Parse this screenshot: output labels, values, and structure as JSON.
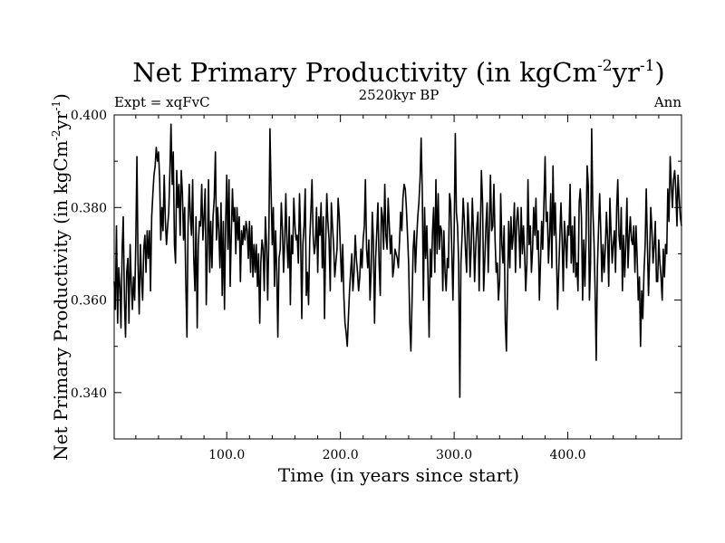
{
  "chart_data": {
    "type": "line",
    "title": "Net Primary Productivity (in kgCm",
    "title_sup1": "-2",
    "title_mid": "yr",
    "title_sup2": "-1",
    "title_end": ")",
    "subtitle": "2520kyr BP",
    "left_label": "Expt = xqFvC",
    "right_label": "Ann",
    "xlabel": "Time (in years since start)",
    "ylabel_main": "Net Primary Productivity (in kgCm",
    "ylabel_sup1": "-2",
    "ylabel_mid": "yr",
    "ylabel_sup2": "-1",
    "ylabel_end": ")",
    "xlim": [
      1,
      500
    ],
    "ylim": [
      0.33,
      0.4
    ],
    "x_ticks": [
      100,
      200,
      300,
      400
    ],
    "x_tick_labels": [
      "100.0",
      "200.0",
      "300.0",
      "400.0"
    ],
    "y_ticks": [
      0.34,
      0.36,
      0.38,
      0.4
    ],
    "y_tick_labels": [
      "0.340",
      "0.360",
      "0.380",
      "0.400"
    ],
    "grid": false,
    "line_color": "#000000",
    "series": [
      {
        "x_start": 1,
        "x_step": 1,
        "values": [
          0.364,
          0.358,
          0.376,
          0.355,
          0.367,
          0.363,
          0.354,
          0.371,
          0.378,
          0.36,
          0.352,
          0.366,
          0.369,
          0.355,
          0.372,
          0.364,
          0.358,
          0.365,
          0.36,
          0.372,
          0.391,
          0.368,
          0.357,
          0.372,
          0.365,
          0.36,
          0.371,
          0.374,
          0.366,
          0.375,
          0.369,
          0.375,
          0.362,
          0.378,
          0.383,
          0.387,
          0.389,
          0.393,
          0.39,
          0.392,
          0.386,
          0.373,
          0.38,
          0.375,
          0.387,
          0.377,
          0.372,
          0.376,
          0.379,
          0.388,
          0.398,
          0.385,
          0.392,
          0.372,
          0.368,
          0.388,
          0.38,
          0.385,
          0.374,
          0.388,
          0.383,
          0.373,
          0.38,
          0.364,
          0.352,
          0.376,
          0.385,
          0.378,
          0.374,
          0.386,
          0.369,
          0.362,
          0.378,
          0.354,
          0.372,
          0.377,
          0.376,
          0.385,
          0.373,
          0.378,
          0.384,
          0.359,
          0.372,
          0.386,
          0.366,
          0.377,
          0.367,
          0.378,
          0.382,
          0.392,
          0.373,
          0.38,
          0.375,
          0.367,
          0.381,
          0.361,
          0.377,
          0.358,
          0.376,
          0.387,
          0.371,
          0.386,
          0.363,
          0.374,
          0.384,
          0.377,
          0.38,
          0.37,
          0.38,
          0.373,
          0.378,
          0.364,
          0.375,
          0.372,
          0.376,
          0.373,
          0.377,
          0.375,
          0.369,
          0.377,
          0.366,
          0.376,
          0.365,
          0.372,
          0.366,
          0.372,
          0.363,
          0.37,
          0.355,
          0.368,
          0.373,
          0.371,
          0.362,
          0.378,
          0.372,
          0.36,
          0.373,
          0.397,
          0.384,
          0.372,
          0.38,
          0.363,
          0.375,
          0.366,
          0.352,
          0.369,
          0.371,
          0.381,
          0.375,
          0.366,
          0.373,
          0.383,
          0.372,
          0.367,
          0.378,
          0.359,
          0.374,
          0.37,
          0.382,
          0.376,
          0.373,
          0.374,
          0.368,
          0.383,
          0.374,
          0.356,
          0.372,
          0.376,
          0.384,
          0.361,
          0.366,
          0.359,
          0.373,
          0.379,
          0.386,
          0.374,
          0.37,
          0.372,
          0.38,
          0.366,
          0.378,
          0.374,
          0.381,
          0.367,
          0.378,
          0.356,
          0.372,
          0.383,
          0.377,
          0.373,
          0.362,
          0.381,
          0.376,
          0.372,
          0.365,
          0.368,
          0.371,
          0.382,
          0.378,
          0.371,
          0.364,
          0.372,
          0.361,
          0.355,
          0.353,
          0.35,
          0.356,
          0.362,
          0.366,
          0.37,
          0.362,
          0.366,
          0.374,
          0.369,
          0.366,
          0.362,
          0.365,
          0.371,
          0.367,
          0.373,
          0.376,
          0.386,
          0.371,
          0.367,
          0.373,
          0.36,
          0.366,
          0.379,
          0.373,
          0.355,
          0.369,
          0.375,
          0.381,
          0.368,
          0.361,
          0.38,
          0.378,
          0.371,
          0.385,
          0.374,
          0.371,
          0.382,
          0.376,
          0.37,
          0.374,
          0.365,
          0.367,
          0.371,
          0.37,
          0.369,
          0.367,
          0.373,
          0.379,
          0.375,
          0.382,
          0.385,
          0.384,
          0.38,
          0.374,
          0.368,
          0.355,
          0.349,
          0.36,
          0.371,
          0.375,
          0.366,
          0.373,
          0.378,
          0.381,
          0.386,
          0.395,
          0.383,
          0.36,
          0.38,
          0.369,
          0.376,
          0.366,
          0.352,
          0.371,
          0.365,
          0.375,
          0.38,
          0.366,
          0.386,
          0.37,
          0.383,
          0.371,
          0.376,
          0.375,
          0.362,
          0.375,
          0.366,
          0.362,
          0.369,
          0.367,
          0.383,
          0.381,
          0.37,
          0.36,
          0.374,
          0.396,
          0.379,
          0.376,
          0.368,
          0.339,
          0.368,
          0.374,
          0.382,
          0.377,
          0.371,
          0.366,
          0.381,
          0.376,
          0.365,
          0.371,
          0.382,
          0.375,
          0.364,
          0.371,
          0.376,
          0.379,
          0.362,
          0.374,
          0.388,
          0.381,
          0.362,
          0.369,
          0.376,
          0.381,
          0.366,
          0.376,
          0.387,
          0.375,
          0.376,
          0.385,
          0.373,
          0.366,
          0.368,
          0.36,
          0.364,
          0.383,
          0.372,
          0.368,
          0.376,
          0.355,
          0.349,
          0.364,
          0.377,
          0.367,
          0.378,
          0.371,
          0.374,
          0.381,
          0.366,
          0.377,
          0.38,
          0.375,
          0.367,
          0.38,
          0.37,
          0.376,
          0.37,
          0.362,
          0.368,
          0.386,
          0.372,
          0.376,
          0.366,
          0.371,
          0.38,
          0.374,
          0.382,
          0.371,
          0.375,
          0.36,
          0.368,
          0.377,
          0.371,
          0.381,
          0.391,
          0.377,
          0.379,
          0.368,
          0.374,
          0.383,
          0.367,
          0.389,
          0.374,
          0.381,
          0.37,
          0.358,
          0.366,
          0.374,
          0.381,
          0.373,
          0.362,
          0.377,
          0.373,
          0.367,
          0.376,
          0.374,
          0.385,
          0.368,
          0.376,
          0.366,
          0.378,
          0.365,
          0.368,
          0.362,
          0.381,
          0.384,
          0.378,
          0.36,
          0.373,
          0.363,
          0.373,
          0.389,
          0.385,
          0.36,
          0.368,
          0.397,
          0.38,
          0.373,
          0.362,
          0.347,
          0.367,
          0.375,
          0.383,
          0.375,
          0.364,
          0.372,
          0.366,
          0.371,
          0.379,
          0.373,
          0.363,
          0.382,
          0.375,
          0.368,
          0.372,
          0.375,
          0.366,
          0.38,
          0.386,
          0.374,
          0.371,
          0.38,
          0.362,
          0.374,
          0.365,
          0.372,
          0.382,
          0.367,
          0.374,
          0.378,
          0.373,
          0.372,
          0.376,
          0.366,
          0.376,
          0.369,
          0.36,
          0.365,
          0.35,
          0.362,
          0.356,
          0.366,
          0.372,
          0.384,
          0.372,
          0.361,
          0.37,
          0.38,
          0.375,
          0.368,
          0.372,
          0.377,
          0.364,
          0.364,
          0.373,
          0.368,
          0.365,
          0.36,
          0.371,
          0.365,
          0.372,
          0.37,
          0.384,
          0.377,
          0.391,
          0.385,
          0.38,
          0.386,
          0.388,
          0.384,
          0.376,
          0.387,
          0.382,
          0.378,
          0.376
        ]
      }
    ]
  }
}
